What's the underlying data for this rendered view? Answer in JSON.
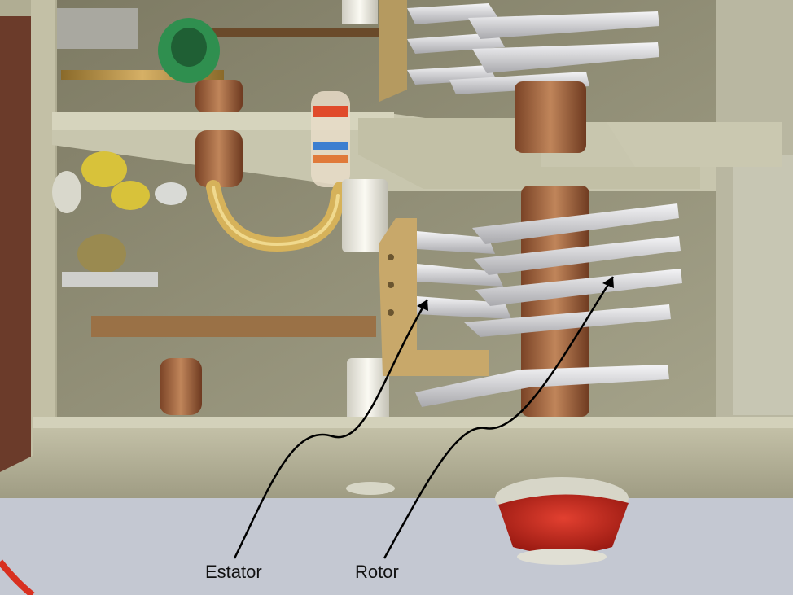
{
  "labels": {
    "estator": "Estator",
    "rotor": "Rotor"
  },
  "colors": {
    "chassis_metal": "#b8b59a",
    "background_blue": "#c9cdd6",
    "plate_silver": "#e4e4e6",
    "copper": "#a0603a",
    "red_sealant": "#c8281e",
    "coil_green": "#2f8f4f",
    "ceramic_white": "#f2f1ea",
    "arrow": "#000000"
  }
}
